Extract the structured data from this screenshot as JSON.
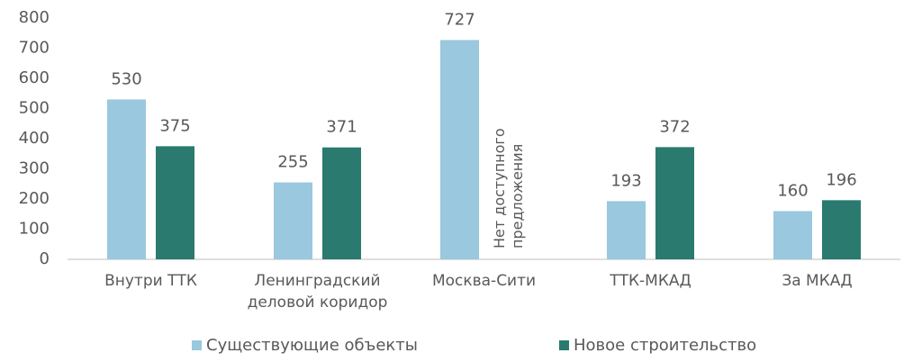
{
  "chart_data": {
    "type": "bar",
    "categories": [
      "Внутри ТТК",
      "Ленинградский деловой коридор",
      "Москва-Сити",
      "ТТК-МКАД",
      "За МКАД"
    ],
    "series": [
      {
        "name": "Существующие объекты",
        "color": "#9ac8de",
        "values": [
          530,
          255,
          727,
          193,
          160
        ]
      },
      {
        "name": "Новое строительство",
        "color": "#2a7a6f",
        "values": [
          375,
          371,
          null,
          372,
          196
        ]
      }
    ],
    "annotation": "Нет доступного предложения",
    "ylim": [
      0,
      800
    ],
    "yticks": [
      0,
      100,
      200,
      300,
      400,
      500,
      600,
      700,
      800
    ],
    "grid": false,
    "legend": "bottom"
  }
}
